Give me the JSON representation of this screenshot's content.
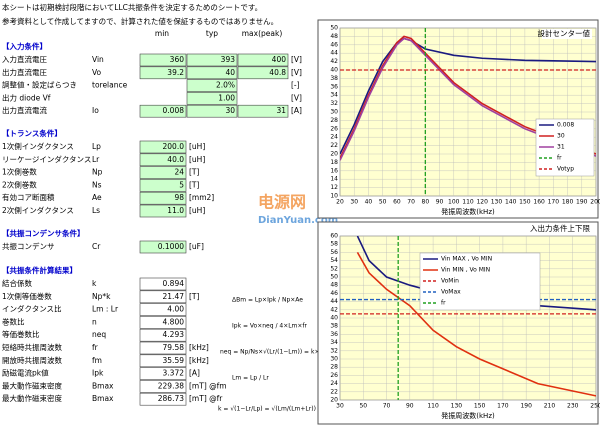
{
  "notes": [
    "本シートは初期検討段階においてLLC共振条件を決定するためのシートです。",
    "参考資料として作成してますので、計算された値を保証するものではありません。"
  ],
  "headers": [
    "min",
    "typ",
    "max(peak)"
  ],
  "sections": [
    {
      "title": "【入力条件】",
      "rows": [
        [
          "入力直流電圧",
          "Vin",
          "360",
          "393",
          "400",
          "[V]"
        ],
        [
          "出力直流電圧",
          "Vo",
          "39.2",
          "40",
          "40.8",
          "[V]"
        ],
        [
          "調整値・設定ばらつき",
          "torelance",
          null,
          "2.0%",
          null,
          "[-]"
        ],
        [
          "出力 diode Vf",
          null,
          null,
          "1.00",
          null,
          "[V]"
        ],
        [
          "出力直流電流",
          "Io",
          "0.008",
          "30",
          "31",
          "[A]"
        ]
      ]
    },
    {
      "title": "【トランス条件】",
      "rows": [
        [
          "1次側インダクタンス",
          "Lp",
          "200.0",
          "[uH]"
        ],
        [
          "リーケージインダクタンス",
          "Lr",
          "40.0",
          "[uH]"
        ],
        [
          "1次側巻数",
          "Np",
          "24",
          "[T]"
        ],
        [
          "2次側巻数",
          "Ns",
          "5",
          "[T]"
        ],
        [
          "有効コア断面積",
          "Ae",
          "98",
          "[mm2]"
        ],
        [
          "2次側インダクタンス",
          "Ls",
          "11.0",
          "[uH]"
        ]
      ]
    },
    {
      "title": "【共振コンデンサ条件】",
      "rows": [
        [
          "共振コンデンサ",
          "Cr",
          "0.1000",
          "[uF]"
        ]
      ]
    },
    {
      "title": "【共振条件計算結果】",
      "rows": [
        [
          "結合係数",
          "k",
          "0.894",
          null
        ],
        [
          "1次側等価巻数",
          "Np*k",
          "21.47",
          "[T]"
        ],
        [
          "インダクタンス比",
          "Lm : Lr",
          "4.00",
          null
        ],
        [
          "巻数比",
          "n",
          "4.800",
          null
        ],
        [
          "等価巻数比",
          "neq",
          "4.293",
          null
        ],
        [
          "短絡時共振周波数",
          "fr",
          "79.58",
          "[kHz]"
        ],
        [
          "開放時共振周波数",
          "fm",
          "35.59",
          "[kHz]"
        ],
        [
          "励磁電流pk値",
          "Ipk",
          "3.372",
          "[A]"
        ],
        [
          "最大動作磁束密度",
          "Bmax",
          "229.38",
          "[mT] @fm"
        ],
        [
          "最大動作磁束密度",
          "Bmax",
          "286.73",
          "[mT] @fr"
        ]
      ]
    }
  ],
  "formulas": [
    "ΔBm = Lp×Ipk / Np×Ae",
    "Ipk = Vo×neq / 4×Lm×fr",
    "neq = Np/Ns×√(Lr/(1−Lm)) = k×Np/Ns",
    "Lm = Lp / Lr",
    "k = √(1−Lr/Lp) = √(Lm/(Lm+Lr))"
  ],
  "watermark": [
    "电源网",
    "DianYuan.com"
  ],
  "charts": [
    {
      "type": "line",
      "title": "設計センター値",
      "xlabel": "発振周波数(kHz)",
      "xlim": [
        20,
        200
      ],
      "ylim": [
        10,
        50
      ],
      "xticks": [
        20,
        30,
        40,
        50,
        60,
        70,
        80,
        90,
        100,
        110,
        120,
        130,
        140,
        150,
        160,
        170,
        180,
        190,
        200
      ],
      "yticks": [
        10,
        12,
        14,
        16,
        18,
        20,
        22,
        24,
        26,
        28,
        30,
        32,
        34,
        36,
        38,
        40,
        42,
        44,
        46,
        48,
        50
      ],
      "x": [
        20,
        30,
        40,
        50,
        60,
        65,
        70,
        80,
        100,
        120,
        150,
        200
      ],
      "series": [
        {
          "name": "0.008",
          "color": "#1a1a80",
          "values": [
            20,
            27,
            35,
            42,
            46.5,
            47.5,
            47,
            45,
            43.5,
            42.8,
            42.3,
            42
          ]
        },
        {
          "name": "30",
          "color": "#d02020",
          "values": [
            19,
            26,
            34,
            41,
            46.5,
            48,
            47.5,
            44,
            37,
            32,
            26.5,
            20
          ]
        },
        {
          "name": "31",
          "color": "#a040a0",
          "values": [
            18.5,
            25.5,
            33.5,
            40.5,
            46,
            47.5,
            47,
            43.5,
            36.5,
            31.5,
            26,
            19.5
          ]
        }
      ],
      "lines": [
        {
          "name": "fr",
          "color": "#20a020",
          "orient": "v",
          "value": 80
        },
        {
          "name": "Votyp",
          "color": "#d02020",
          "orient": "h",
          "value": 40
        }
      ]
    },
    {
      "type": "line",
      "title": "入出力条件上下限",
      "xlabel": "発振周波数(kHz)",
      "xlim": [
        30,
        250
      ],
      "ylim": [
        20,
        60
      ],
      "xticks": [
        30,
        50,
        70,
        90,
        110,
        130,
        150,
        170,
        190,
        210,
        230,
        250
      ],
      "yticks": [
        20,
        22,
        24,
        26,
        28,
        30,
        32,
        34,
        36,
        38,
        40,
        42,
        44,
        46,
        48,
        50,
        52,
        54,
        56,
        58,
        60
      ],
      "x": [
        45,
        55,
        70,
        90,
        110,
        130,
        150,
        200,
        250
      ],
      "series": [
        {
          "name": "Vin MAX , Vo MIN",
          "color": "#1a1a80",
          "values": [
            60,
            54,
            50,
            48,
            46.5,
            45.5,
            44.5,
            43,
            42
          ]
        },
        {
          "name": "Vin MIN , Vo MIN",
          "color": "#e03010",
          "values": [
            56,
            51,
            47,
            43,
            37,
            33,
            30,
            24,
            21
          ]
        }
      ],
      "lines": [
        {
          "name": "VoMin",
          "color": "#d02020",
          "orient": "h",
          "value": 41
        },
        {
          "name": "VoMax",
          "color": "#2060c0",
          "orient": "h",
          "value": 44.5
        },
        {
          "name": "fr",
          "color": "#20a020",
          "orient": "v",
          "value": 80
        }
      ]
    }
  ]
}
